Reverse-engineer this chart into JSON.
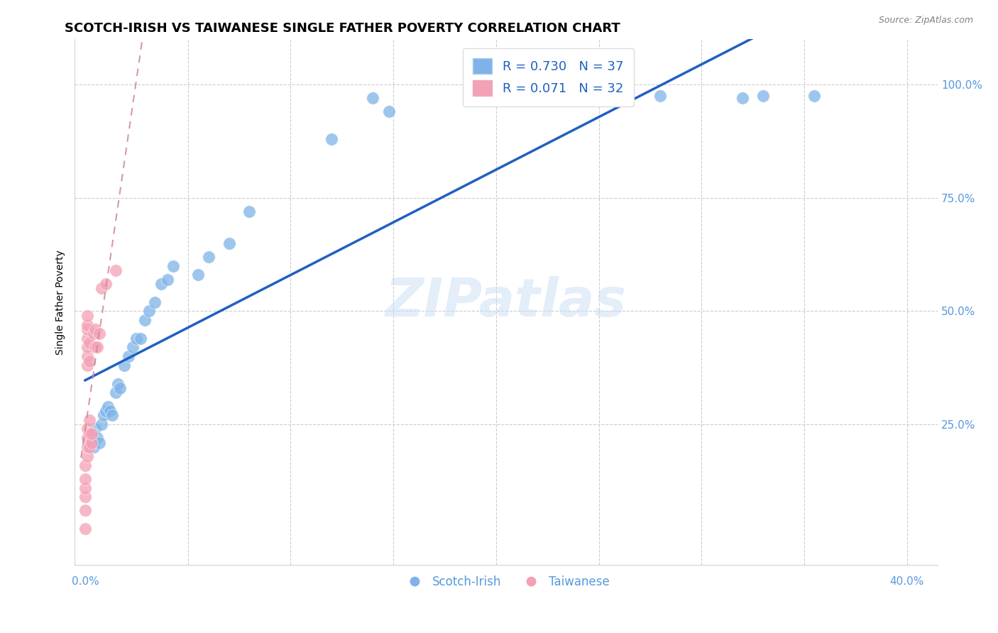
{
  "title": "SCOTCH-IRISH VS TAIWANESE SINGLE FATHER POVERTY CORRELATION CHART",
  "source": "Source: ZipAtlas.com",
  "ylabel_label": "Single Father Poverty",
  "watermark": "ZIPatlas",
  "x_ticks": [
    0.0,
    0.05,
    0.1,
    0.15,
    0.2,
    0.25,
    0.3,
    0.35,
    0.4
  ],
  "y_ticks": [
    0.0,
    0.25,
    0.5,
    0.75,
    1.0
  ],
  "xlim": [
    -0.005,
    0.415
  ],
  "ylim": [
    -0.06,
    1.1
  ],
  "blue_color": "#7EB3E8",
  "pink_color": "#F4A0B5",
  "blue_line_color": "#2060C0",
  "pink_line_color": "#E08090",
  "r_blue": 0.73,
  "n_blue": 37,
  "r_pink": 0.071,
  "n_pink": 32,
  "scotch_irish_x": [
    0.002,
    0.003,
    0.004,
    0.005,
    0.006,
    0.007,
    0.008,
    0.009,
    0.01,
    0.011,
    0.012,
    0.013,
    0.015,
    0.016,
    0.017,
    0.019,
    0.021,
    0.023,
    0.025,
    0.027,
    0.029,
    0.031,
    0.034,
    0.037,
    0.04,
    0.043,
    0.055,
    0.06,
    0.07,
    0.08,
    0.12,
    0.14,
    0.148,
    0.28,
    0.32,
    0.33,
    0.355
  ],
  "scotch_irish_y": [
    0.2,
    0.22,
    0.2,
    0.24,
    0.22,
    0.21,
    0.25,
    0.27,
    0.28,
    0.29,
    0.28,
    0.27,
    0.32,
    0.34,
    0.33,
    0.38,
    0.4,
    0.42,
    0.44,
    0.44,
    0.48,
    0.5,
    0.52,
    0.56,
    0.57,
    0.6,
    0.58,
    0.62,
    0.65,
    0.72,
    0.88,
    0.97,
    0.94,
    0.975,
    0.97,
    0.975,
    0.975
  ],
  "taiwanese_x": [
    0.0,
    0.0,
    0.0,
    0.0,
    0.0,
    0.0,
    0.001,
    0.001,
    0.001,
    0.001,
    0.001,
    0.001,
    0.001,
    0.001,
    0.001,
    0.001,
    0.001,
    0.002,
    0.002,
    0.002,
    0.002,
    0.002,
    0.003,
    0.003,
    0.004,
    0.005,
    0.005,
    0.006,
    0.007,
    0.008,
    0.01,
    0.015
  ],
  "taiwanese_y": [
    0.02,
    0.06,
    0.09,
    0.11,
    0.13,
    0.16,
    0.18,
    0.2,
    0.22,
    0.24,
    0.38,
    0.4,
    0.42,
    0.44,
    0.46,
    0.47,
    0.49,
    0.2,
    0.23,
    0.26,
    0.39,
    0.43,
    0.21,
    0.23,
    0.45,
    0.42,
    0.46,
    0.42,
    0.45,
    0.55,
    0.56,
    0.59
  ],
  "grid_color": "#CCCCCC",
  "tick_color": "#5599DD",
  "background_color": "#FFFFFF",
  "title_fontsize": 13,
  "axis_label_fontsize": 10,
  "tick_fontsize": 11,
  "legend_fontsize": 13,
  "marker_size": 160
}
